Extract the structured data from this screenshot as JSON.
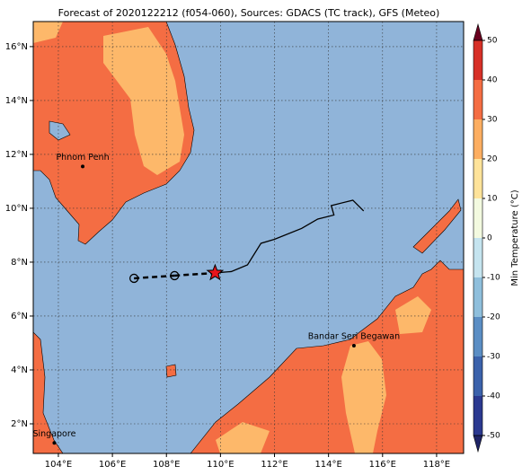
{
  "map": {
    "title": "Forecast of 2020122212 (f054-060), Sources: GDACS (TC track), GFS (Meteo)",
    "xlim": [
      103.07,
      119.0
    ],
    "ylim": [
      0.9,
      16.93
    ],
    "xticks": [
      {
        "value": 104,
        "label": "104°E"
      },
      {
        "value": 106,
        "label": "106°E"
      },
      {
        "value": 108,
        "label": "108°E"
      },
      {
        "value": 110,
        "label": "110°E"
      },
      {
        "value": 112,
        "label": "112°E"
      },
      {
        "value": 114,
        "label": "114°E"
      },
      {
        "value": 116,
        "label": "116°E"
      },
      {
        "value": 118,
        "label": "118°E"
      }
    ],
    "yticks": [
      {
        "value": 2,
        "label": "2°N"
      },
      {
        "value": 4,
        "label": "4°N"
      },
      {
        "value": 6,
        "label": "6°N"
      },
      {
        "value": 8,
        "label": "8°N"
      },
      {
        "value": 10,
        "label": "10°N"
      },
      {
        "value": 12,
        "label": "12°N"
      },
      {
        "value": 14,
        "label": "14°N"
      },
      {
        "value": 16,
        "label": "16°N"
      }
    ],
    "grid": true,
    "cities": [
      {
        "name": "Phnom Penh",
        "lon": 104.9,
        "lat": 11.55
      },
      {
        "name": "Bandar Seri Begawan",
        "lon": 114.94,
        "lat": 4.9
      },
      {
        "name": "Singapore",
        "lon": 103.85,
        "lat": 1.29
      }
    ],
    "past_track": {
      "lon": [
        109.8,
        110.4,
        111.0,
        111.5,
        112.0,
        113.0,
        113.6,
        114.2,
        114.1,
        114.9,
        115.3
      ],
      "lat": [
        7.6,
        7.65,
        7.9,
        8.7,
        8.85,
        9.25,
        9.6,
        9.75,
        10.1,
        10.3,
        9.9
      ]
    },
    "forecast": {
      "lon": [
        106.8,
        108.3
      ],
      "lat": [
        7.4,
        7.5
      ]
    },
    "current": {
      "lon": 109.8,
      "lat": 7.6
    }
  },
  "colorbar": {
    "label": "Min Temperature (°C)",
    "lim": [
      -50,
      50
    ],
    "ticks": [
      -50,
      -40,
      -30,
      -20,
      -10,
      0,
      10,
      20,
      30,
      40,
      50
    ],
    "colors": [
      "#2b3990",
      "#3b62ab",
      "#5b8ec4",
      "#8fbfdc",
      "#c5e4ef",
      "#f3fae0",
      "#fee39a",
      "#fdae61",
      "#f46d43",
      "#d73027",
      "#a50026"
    ],
    "extend_colors": [
      "#1f2466",
      "#6a001f"
    ]
  }
}
